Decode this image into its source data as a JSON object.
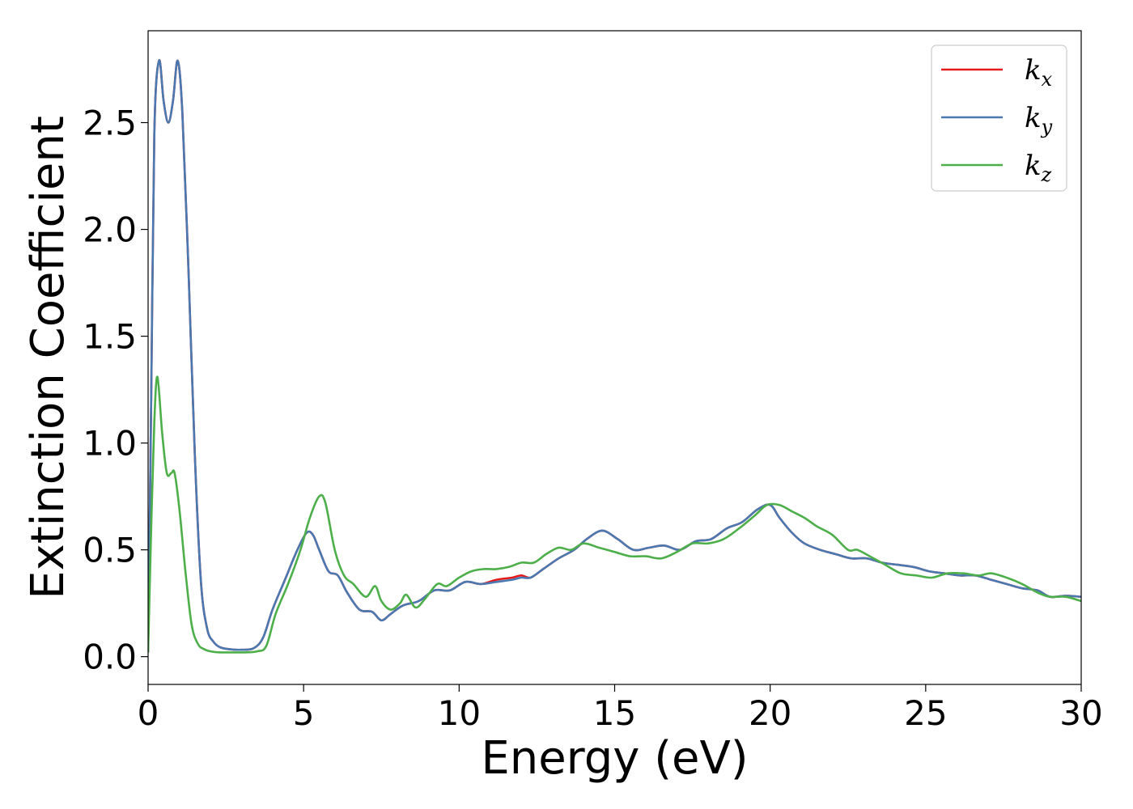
{
  "chart_data": {
    "type": "line",
    "xlabel": "Energy (eV)",
    "ylabel": "Extinction Coefficient",
    "xlim": [
      0,
      30
    ],
    "ylim": [
      -0.13,
      2.93
    ],
    "xticks": [
      0,
      5,
      10,
      15,
      20,
      25,
      30
    ],
    "xtick_labels": [
      "0",
      "5",
      "10",
      "15",
      "20",
      "25",
      "30"
    ],
    "yticks": [
      0.0,
      0.5,
      1.0,
      1.5,
      2.0,
      2.5
    ],
    "ytick_labels": [
      "0.0",
      "0.5",
      "1.0",
      "1.5",
      "2.0",
      "2.5"
    ],
    "grid": false,
    "legend_position": "top-right",
    "series": [
      {
        "name": "k",
        "subscript": "x",
        "color": "#e41a1c",
        "x": [
          0,
          0.1,
          0.2,
          0.35,
          0.5,
          0.65,
          0.8,
          0.95,
          1.1,
          1.3,
          1.5,
          1.7,
          1.9,
          2.1,
          2.3,
          2.6,
          3.0,
          3.4,
          3.7,
          4.0,
          4.4,
          4.8,
          5.1,
          5.3,
          5.5,
          5.8,
          6.1,
          6.4,
          6.8,
          7.2,
          7.5,
          7.8,
          8.2,
          8.7,
          9.2,
          9.7,
          10.2,
          10.7,
          11.2,
          11.7,
          12.0,
          12.3,
          12.7,
          13.2,
          13.7,
          14.1,
          14.6,
          15.1,
          15.6,
          16.1,
          16.6,
          17.1,
          17.6,
          18.1,
          18.6,
          19.1,
          19.6,
          20.0,
          20.3,
          20.7,
          21.1,
          21.6,
          22.1,
          22.6,
          23.1,
          23.6,
          24.1,
          24.6,
          25.1,
          25.6,
          26.1,
          26.6,
          27.1,
          27.6,
          28.1,
          28.6,
          29.0,
          29.5,
          30.0
        ],
        "y": [
          0.02,
          1.2,
          2.45,
          2.79,
          2.6,
          2.5,
          2.6,
          2.79,
          2.55,
          1.8,
          0.95,
          0.35,
          0.13,
          0.07,
          0.045,
          0.035,
          0.032,
          0.04,
          0.09,
          0.22,
          0.36,
          0.5,
          0.58,
          0.57,
          0.5,
          0.4,
          0.38,
          0.3,
          0.22,
          0.21,
          0.17,
          0.2,
          0.24,
          0.26,
          0.31,
          0.31,
          0.35,
          0.34,
          0.36,
          0.37,
          0.38,
          0.37,
          0.41,
          0.46,
          0.5,
          0.55,
          0.59,
          0.55,
          0.5,
          0.51,
          0.52,
          0.5,
          0.54,
          0.55,
          0.6,
          0.63,
          0.69,
          0.71,
          0.65,
          0.58,
          0.53,
          0.5,
          0.48,
          0.46,
          0.46,
          0.44,
          0.43,
          0.42,
          0.4,
          0.39,
          0.38,
          0.38,
          0.36,
          0.34,
          0.32,
          0.31,
          0.28,
          0.285,
          0.28
        ]
      },
      {
        "name": "k",
        "subscript": "y",
        "color": "#4a78b0",
        "x": [
          0,
          0.1,
          0.2,
          0.35,
          0.5,
          0.65,
          0.8,
          0.95,
          1.1,
          1.3,
          1.5,
          1.7,
          1.9,
          2.1,
          2.3,
          2.6,
          3.0,
          3.4,
          3.7,
          4.0,
          4.4,
          4.8,
          5.1,
          5.3,
          5.5,
          5.8,
          6.1,
          6.4,
          6.8,
          7.2,
          7.5,
          7.8,
          8.2,
          8.7,
          9.2,
          9.7,
          10.2,
          10.7,
          11.2,
          11.7,
          12.0,
          12.3,
          12.7,
          13.2,
          13.7,
          14.1,
          14.6,
          15.1,
          15.6,
          16.1,
          16.6,
          17.1,
          17.6,
          18.1,
          18.6,
          19.1,
          19.6,
          20.0,
          20.3,
          20.7,
          21.1,
          21.6,
          22.1,
          22.6,
          23.1,
          23.6,
          24.1,
          24.6,
          25.1,
          25.6,
          26.1,
          26.6,
          27.1,
          27.6,
          28.1,
          28.6,
          29.0,
          29.5,
          30.0
        ],
        "y": [
          0.02,
          1.2,
          2.45,
          2.79,
          2.6,
          2.5,
          2.6,
          2.79,
          2.55,
          1.8,
          0.95,
          0.35,
          0.13,
          0.07,
          0.045,
          0.035,
          0.032,
          0.04,
          0.09,
          0.22,
          0.36,
          0.5,
          0.58,
          0.57,
          0.5,
          0.4,
          0.38,
          0.3,
          0.22,
          0.21,
          0.17,
          0.2,
          0.24,
          0.26,
          0.31,
          0.31,
          0.35,
          0.34,
          0.35,
          0.36,
          0.37,
          0.37,
          0.41,
          0.46,
          0.5,
          0.55,
          0.59,
          0.55,
          0.5,
          0.51,
          0.52,
          0.5,
          0.54,
          0.55,
          0.6,
          0.63,
          0.69,
          0.71,
          0.65,
          0.58,
          0.53,
          0.5,
          0.48,
          0.46,
          0.46,
          0.44,
          0.43,
          0.42,
          0.4,
          0.39,
          0.38,
          0.38,
          0.36,
          0.34,
          0.32,
          0.31,
          0.28,
          0.285,
          0.28
        ]
      },
      {
        "name": "k",
        "subscript": "z",
        "color": "#4daf4a",
        "x": [
          0,
          0.1,
          0.2,
          0.3,
          0.45,
          0.6,
          0.75,
          0.85,
          1.0,
          1.2,
          1.4,
          1.6,
          1.8,
          2.0,
          2.3,
          2.7,
          3.1,
          3.5,
          3.8,
          4.1,
          4.5,
          4.9,
          5.2,
          5.5,
          5.7,
          6.0,
          6.3,
          6.6,
          7.0,
          7.3,
          7.5,
          7.8,
          8.1,
          8.3,
          8.6,
          8.9,
          9.3,
          9.6,
          10.0,
          10.4,
          10.8,
          11.2,
          11.6,
          12.0,
          12.4,
          12.8,
          13.2,
          13.6,
          14.0,
          14.5,
          15.0,
          15.5,
          16.0,
          16.5,
          17.0,
          17.5,
          18.0,
          18.5,
          19.0,
          19.5,
          19.9,
          20.3,
          20.7,
          21.1,
          21.5,
          22.0,
          22.5,
          22.8,
          23.2,
          23.7,
          24.2,
          24.7,
          25.2,
          25.7,
          26.2,
          26.7,
          27.1,
          27.6,
          28.1,
          28.6,
          29.0,
          29.5,
          30.0
        ],
        "y": [
          0.02,
          0.6,
          1.1,
          1.31,
          1.05,
          0.86,
          0.86,
          0.86,
          0.7,
          0.4,
          0.15,
          0.06,
          0.035,
          0.025,
          0.02,
          0.02,
          0.02,
          0.025,
          0.05,
          0.2,
          0.34,
          0.5,
          0.65,
          0.75,
          0.72,
          0.5,
          0.38,
          0.34,
          0.28,
          0.33,
          0.26,
          0.22,
          0.25,
          0.29,
          0.23,
          0.27,
          0.34,
          0.33,
          0.37,
          0.4,
          0.41,
          0.41,
          0.42,
          0.44,
          0.44,
          0.48,
          0.51,
          0.5,
          0.53,
          0.51,
          0.49,
          0.47,
          0.47,
          0.46,
          0.49,
          0.53,
          0.53,
          0.55,
          0.6,
          0.66,
          0.71,
          0.71,
          0.68,
          0.65,
          0.61,
          0.57,
          0.5,
          0.5,
          0.47,
          0.43,
          0.39,
          0.38,
          0.37,
          0.39,
          0.39,
          0.38,
          0.39,
          0.37,
          0.34,
          0.3,
          0.28,
          0.28,
          0.26
        ]
      }
    ]
  }
}
